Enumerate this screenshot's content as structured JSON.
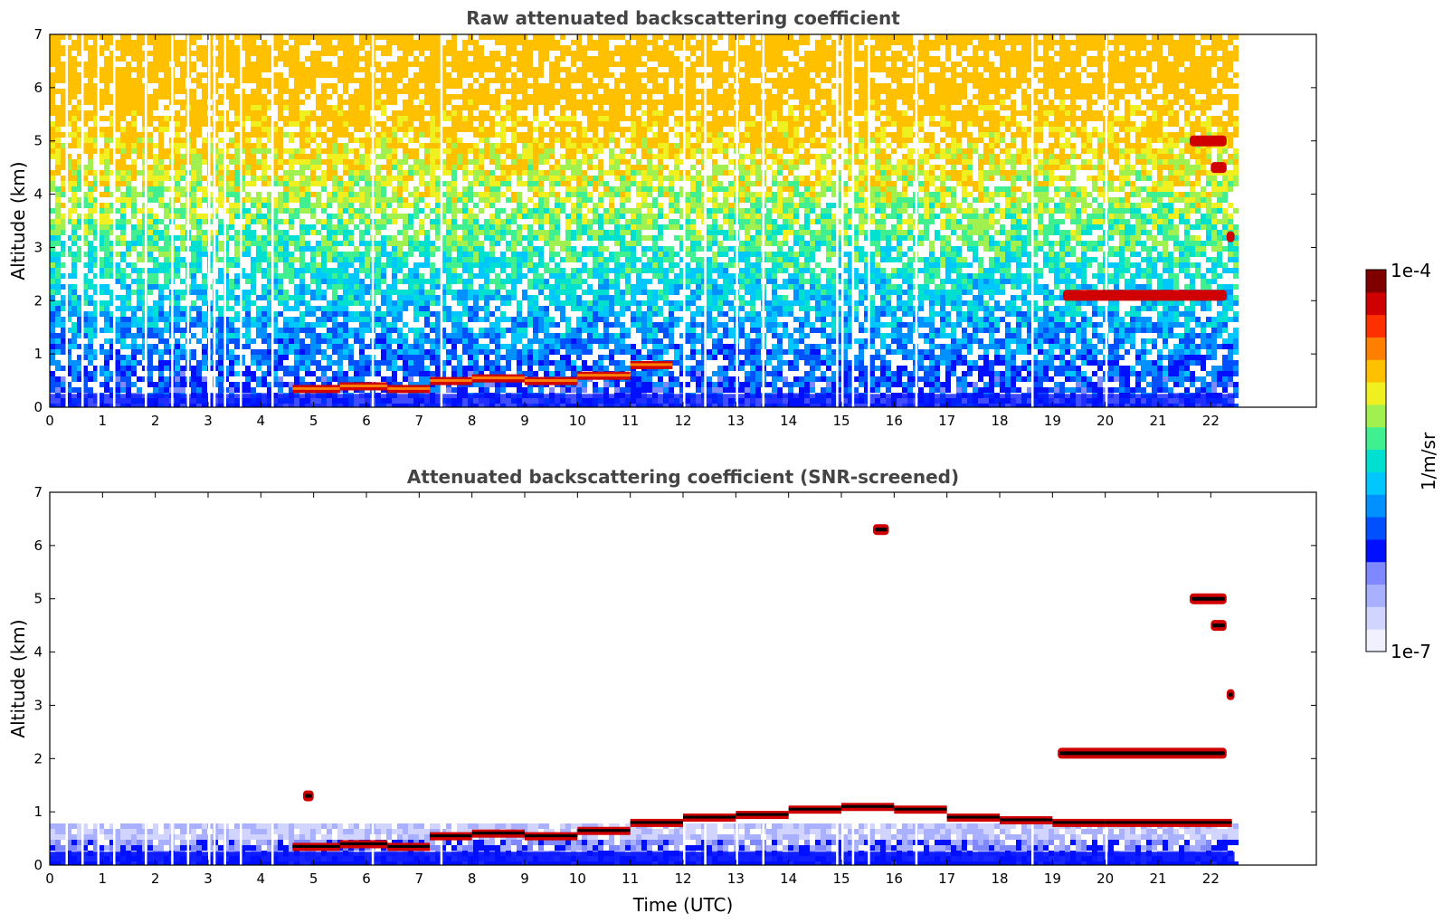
{
  "chart_data": [
    {
      "type": "heatmap",
      "title": "Raw attenuated backscattering coefficient",
      "xlabel": "",
      "ylabel": "Altitude (km)",
      "xlim": [
        0,
        24
      ],
      "ylim": [
        0,
        7
      ],
      "xticks": [
        "0",
        "1",
        "2",
        "3",
        "4",
        "5",
        "6",
        "7",
        "8",
        "9",
        "10",
        "11",
        "12",
        "13",
        "14",
        "15",
        "16",
        "17",
        "18",
        "19",
        "20",
        "21",
        "22"
      ],
      "yticks": [
        "0",
        "1",
        "2",
        "3",
        "4",
        "5",
        "6",
        "7"
      ],
      "data_end_hour": 22.45,
      "features": [
        {
          "kind": "boundary_layer_top",
          "points": [
            [
              4.6,
              0.35
            ],
            [
              5.5,
              0.4
            ],
            [
              6.4,
              0.35
            ],
            [
              7.2,
              0.5
            ],
            [
              8,
              0.55
            ],
            [
              9,
              0.5
            ],
            [
              10,
              0.6
            ],
            [
              11,
              0.8
            ],
            [
              11.8,
              0.85
            ]
          ]
        },
        {
          "kind": "cloud",
          "hours": [
            19.2,
            22.3
          ],
          "altitude_km": 2.1
        },
        {
          "kind": "cloud",
          "hours": [
            21.6,
            22.3
          ],
          "altitude_km": 5.0
        },
        {
          "kind": "cloud",
          "hours": [
            22.0,
            22.3
          ],
          "altitude_km": 4.5
        },
        {
          "kind": "cloud",
          "hours": [
            22.3,
            22.45
          ],
          "altitude_km": 3.2
        }
      ]
    },
    {
      "type": "heatmap",
      "title": "Attenuated backscattering coefficient (SNR-screened)",
      "xlabel": "Time (UTC)",
      "ylabel": "Altitude (km)",
      "xlim": [
        0,
        24
      ],
      "ylim": [
        0,
        7
      ],
      "xticks": [
        "0",
        "1",
        "2",
        "3",
        "4",
        "5",
        "6",
        "7",
        "8",
        "9",
        "10",
        "11",
        "12",
        "13",
        "14",
        "15",
        "16",
        "17",
        "18",
        "19",
        "20",
        "21",
        "22"
      ],
      "yticks": [
        "0",
        "1",
        "2",
        "3",
        "4",
        "5",
        "6",
        "7"
      ],
      "data_end_hour": 22.45,
      "features": [
        {
          "kind": "boundary_layer_top",
          "points": [
            [
              4.6,
              0.35
            ],
            [
              5.5,
              0.4
            ],
            [
              6.4,
              0.35
            ],
            [
              7.2,
              0.55
            ],
            [
              8,
              0.6
            ],
            [
              9,
              0.55
            ],
            [
              10,
              0.65
            ],
            [
              11,
              0.8
            ],
            [
              12,
              0.9
            ],
            [
              13,
              0.95
            ],
            [
              14,
              1.05
            ],
            [
              15,
              1.1
            ],
            [
              16,
              1.05
            ],
            [
              17,
              0.9
            ],
            [
              18,
              0.85
            ],
            [
              19,
              0.8
            ],
            [
              20,
              0.8
            ],
            [
              21,
              0.8
            ],
            [
              22.4,
              0.8
            ]
          ]
        },
        {
          "kind": "cloud",
          "hours": [
            19.1,
            22.3
          ],
          "altitude_km": 2.1
        },
        {
          "kind": "cloud",
          "hours": [
            21.6,
            22.3
          ],
          "altitude_km": 5.0
        },
        {
          "kind": "cloud",
          "hours": [
            22.0,
            22.3
          ],
          "altitude_km": 4.5
        },
        {
          "kind": "cloud",
          "hours": [
            22.3,
            22.45
          ],
          "altitude_km": 3.2
        },
        {
          "kind": "cloud",
          "hours": [
            15.6,
            15.9
          ],
          "altitude_km": 6.3
        },
        {
          "kind": "cloud",
          "hours": [
            4.8,
            5.0
          ],
          "altitude_km": 1.3
        }
      ]
    }
  ],
  "colorbar": {
    "max_label": "1e-4",
    "min_label": "1e-7",
    "unit_label": "1/m/sr",
    "colors": [
      "#f0f0ff",
      "#d0d4ff",
      "#a8b0ff",
      "#7f88ff",
      "#0010ff",
      "#0050ff",
      "#0090ff",
      "#00c8ff",
      "#00e0d0",
      "#40f090",
      "#a0f050",
      "#f0f020",
      "#ffc000",
      "#ff8000",
      "#ff3000",
      "#d00000",
      "#800000"
    ]
  }
}
